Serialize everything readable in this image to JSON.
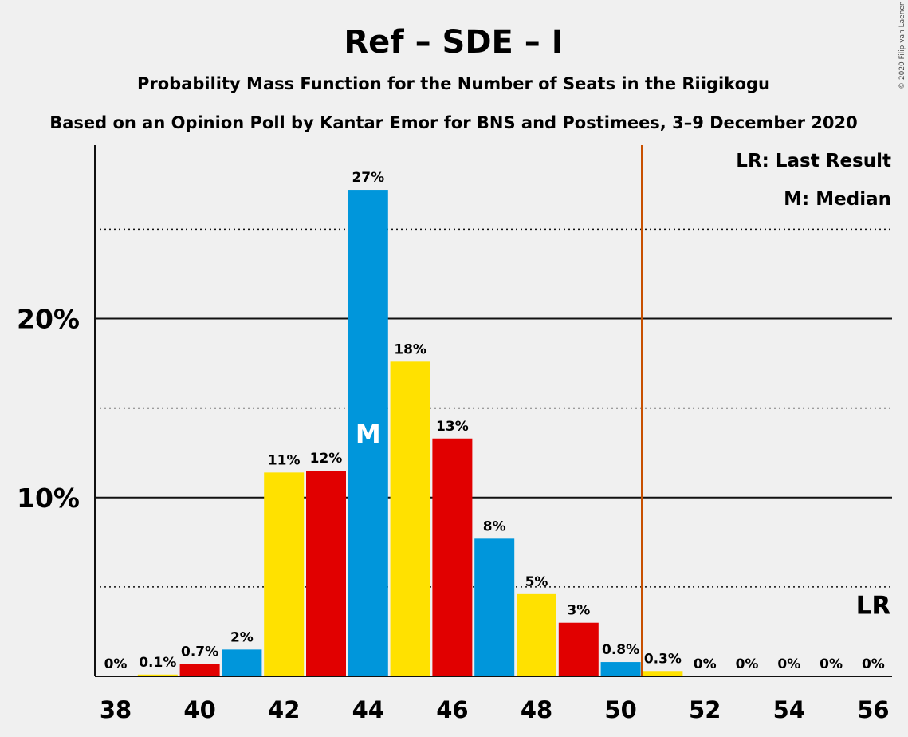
{
  "copyright": "© 2020 Filip van Laenen",
  "chart_data": {
    "type": "bar",
    "title": "Ref – SDE – I",
    "subtitle": "Probability Mass Function for the Number of Seats in the Riigikogu",
    "source": "Based on an Opinion Poll by Kantar Emor for BNS and Postimees, 3–9 December 2020",
    "x": [
      38,
      39,
      40,
      41,
      42,
      43,
      44,
      45,
      46,
      47,
      48,
      49,
      50,
      51,
      52,
      53,
      54,
      55,
      56
    ],
    "values": [
      0,
      0.1,
      0.7,
      1.5,
      11.4,
      11.5,
      27.2,
      17.6,
      13.3,
      7.7,
      4.6,
      3.0,
      0.8,
      0.3,
      0,
      0,
      0,
      0,
      0
    ],
    "labels": [
      "0%",
      "0.1%",
      "0.7%",
      "2%",
      "11%",
      "12%",
      "27%",
      "18%",
      "13%",
      "8%",
      "5%",
      "3%",
      "0.8%",
      "0.3%",
      "0%",
      "0%",
      "0%",
      "0%",
      "0%"
    ],
    "colors": [
      "#0096DB",
      "#FFE100",
      "#E10000"
    ],
    "x_tick_labels": [
      "38",
      "40",
      "42",
      "44",
      "46",
      "48",
      "50",
      "52",
      "54",
      "56"
    ],
    "y_tick_labels": [
      "10%",
      "20%"
    ],
    "ylim": [
      0,
      29.7
    ],
    "y_major_gridlines": [
      10,
      20
    ],
    "y_minor_gridlines": [
      5,
      15,
      25
    ],
    "median_seat": 44,
    "median_label": "M",
    "last_result_seat": 56,
    "last_result_label": "LR",
    "majority_line_x": 50.5,
    "majority_line_color": "#C85000",
    "legend": [
      "LR: Last Result",
      "M: Median"
    ],
    "legend_position": "top-right",
    "grid": true
  }
}
